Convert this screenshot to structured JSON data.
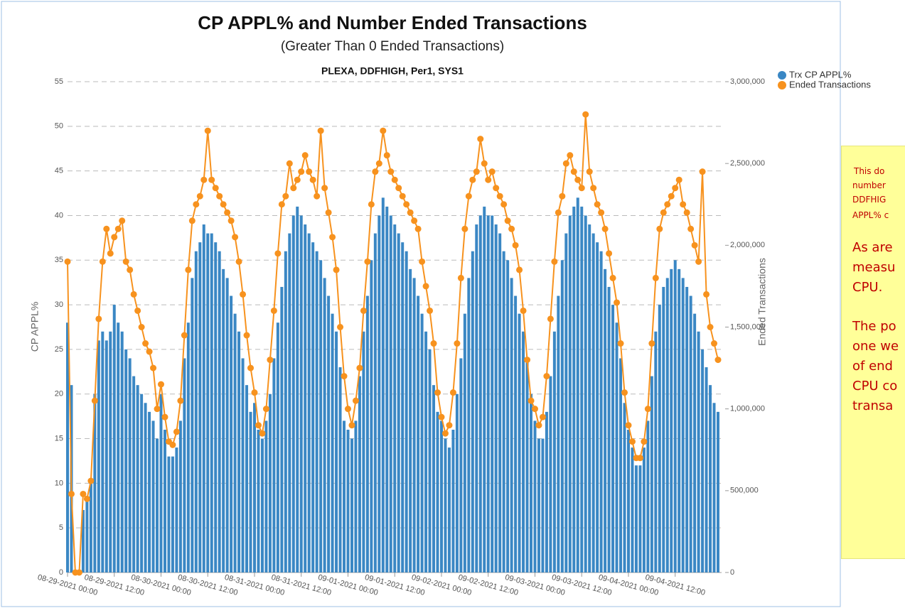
{
  "chart_data": {
    "type": "bar_line",
    "title": "CP APPL% and Number Ended Transactions",
    "subtitle": "(Greater Than 0 Ended Transactions)",
    "caption": "PLEXA, DDFHIGH, Per1, SYS1",
    "y_label": "CP APPL%",
    "y2_label": "Ended Transactions",
    "legend": "top-right",
    "grid": true,
    "categories": [
      "08-29-2021 00:00",
      null,
      null,
      null,
      null,
      null,
      null,
      null,
      null,
      null,
      null,
      null,
      "08-29-2021 12:00",
      null,
      null,
      null,
      null,
      null,
      null,
      null,
      null,
      null,
      null,
      null,
      "08-30-2021 00:00",
      null,
      null,
      null,
      null,
      null,
      null,
      null,
      null,
      null,
      null,
      null,
      "08-30-2021 12:00",
      null,
      null,
      null,
      null,
      null,
      null,
      null,
      null,
      null,
      null,
      null,
      "08-31-2021 00:00",
      null,
      null,
      null,
      null,
      null,
      null,
      null,
      null,
      null,
      null,
      null,
      "08-31-2021 12:00",
      null,
      null,
      null,
      null,
      null,
      null,
      null,
      null,
      null,
      null,
      null,
      "09-01-2021 00:00",
      null,
      null,
      null,
      null,
      null,
      null,
      null,
      null,
      null,
      null,
      null,
      "09-01-2021 12:00",
      null,
      null,
      null,
      null,
      null,
      null,
      null,
      null,
      null,
      null,
      null,
      "09-02-2021 00:00",
      null,
      null,
      null,
      null,
      null,
      null,
      null,
      null,
      null,
      null,
      null,
      "09-02-2021 12:00",
      null,
      null,
      null,
      null,
      null,
      null,
      null,
      null,
      null,
      null,
      null,
      "09-03-2021 00:00",
      null,
      null,
      null,
      null,
      null,
      null,
      null,
      null,
      null,
      null,
      null,
      "09-03-2021 12:00",
      null,
      null,
      null,
      null,
      null,
      null,
      null,
      null,
      null,
      null,
      null,
      "09-04-2021 00:00",
      null,
      null,
      null,
      null,
      null,
      null,
      null,
      null,
      null,
      null,
      null,
      "09-04-2021 12:00",
      null,
      null,
      null,
      null,
      null,
      null,
      null,
      null,
      null,
      null,
      null
    ],
    "series": [
      {
        "name": "Trx CP APPL%",
        "color": "#3a87c4",
        "type": "bar",
        "values": [
          28,
          21,
          0,
          0,
          7,
          8,
          10,
          20,
          26,
          27,
          26,
          27,
          30,
          28,
          27,
          25,
          24,
          22,
          21,
          20,
          19,
          18,
          17,
          15,
          20,
          16,
          13,
          13,
          14,
          17,
          24,
          28,
          33,
          36,
          37,
          39,
          38,
          38,
          37,
          36,
          34,
          33,
          31,
          29,
          27,
          24,
          21,
          18,
          19,
          16,
          15,
          17,
          20,
          24,
          28,
          32,
          36,
          38,
          40,
          41,
          40,
          39,
          38,
          37,
          36,
          35,
          33,
          31,
          29,
          27,
          23,
          17,
          16,
          15,
          17,
          22,
          27,
          31,
          35,
          38,
          40,
          42,
          41,
          40,
          39,
          38,
          37,
          36,
          34,
          33,
          31,
          29,
          27,
          25,
          21,
          18,
          17,
          15,
          14,
          16,
          20,
          24,
          29,
          33,
          36,
          39,
          40,
          41,
          40,
          40,
          39,
          38,
          36,
          35,
          33,
          31,
          29,
          27,
          24,
          20,
          17,
          15,
          15,
          18,
          22,
          27,
          31,
          35,
          38,
          40,
          41,
          42,
          41,
          40,
          39,
          38,
          37,
          36,
          34,
          32,
          30,
          28,
          24,
          19,
          16,
          14,
          12,
          12,
          14,
          17,
          22,
          27,
          30,
          32,
          33,
          34,
          35,
          34,
          33,
          32,
          31,
          29,
          27,
          25,
          23,
          21,
          19,
          18
        ]
      },
      {
        "name": "Ended Transactions",
        "color": "#f7921e",
        "type": "line",
        "axis": "y2",
        "values": [
          1900000,
          480000,
          0,
          0,
          480000,
          450000,
          560000,
          1050000,
          1550000,
          1900000,
          2100000,
          1950000,
          2050000,
          2100000,
          2150000,
          1900000,
          1850000,
          1700000,
          1600000,
          1500000,
          1400000,
          1350000,
          1250000,
          1000000,
          1150000,
          950000,
          800000,
          780000,
          860000,
          1050000,
          1450000,
          1850000,
          2150000,
          2250000,
          2300000,
          2400000,
          2700000,
          2400000,
          2350000,
          2300000,
          2250000,
          2200000,
          2150000,
          2050000,
          1900000,
          1700000,
          1450000,
          1250000,
          1100000,
          900000,
          850000,
          1000000,
          1300000,
          1600000,
          1950000,
          2250000,
          2300000,
          2500000,
          2350000,
          2400000,
          2450000,
          2550000,
          2450000,
          2400000,
          2300000,
          2700000,
          2350000,
          2200000,
          2050000,
          1850000,
          1500000,
          1200000,
          1000000,
          900000,
          1050000,
          1250000,
          1600000,
          1900000,
          2250000,
          2450000,
          2500000,
          2700000,
          2550000,
          2450000,
          2400000,
          2350000,
          2300000,
          2250000,
          2200000,
          2150000,
          2100000,
          1900000,
          1750000,
          1600000,
          1400000,
          1100000,
          950000,
          850000,
          900000,
          1100000,
          1400000,
          1800000,
          2100000,
          2300000,
          2400000,
          2450000,
          2650000,
          2500000,
          2400000,
          2450000,
          2350000,
          2300000,
          2250000,
          2150000,
          2100000,
          2000000,
          1850000,
          1600000,
          1300000,
          1050000,
          1000000,
          900000,
          950000,
          1200000,
          1550000,
          1900000,
          2200000,
          2300000,
          2500000,
          2550000,
          2450000,
          2400000,
          2350000,
          2800000,
          2450000,
          2350000,
          2250000,
          2200000,
          2100000,
          1950000,
          1800000,
          1650000,
          1400000,
          1100000,
          900000,
          800000,
          700000,
          700000,
          800000,
          1000000,
          1400000,
          1800000,
          2100000,
          2200000,
          2250000,
          2300000,
          2350000,
          2400000,
          2250000,
          2200000,
          2100000,
          2000000,
          1900000,
          2450000,
          1700000,
          1500000,
          1400000,
          1300000
        ]
      }
    ],
    "ylim": [
      0,
      55
    ],
    "yticks": [
      0,
      5,
      10,
      15,
      20,
      25,
      30,
      35,
      40,
      45,
      50,
      55
    ],
    "y2lim": [
      0,
      3000000
    ],
    "y2ticks": [
      0,
      {
        "value": 500000,
        "label": "500,000"
      },
      {
        "value": 1000000,
        "label": "1,000,000"
      },
      {
        "value": 1500000,
        "label": "1,500,000"
      },
      {
        "value": 2000000,
        "label": "2,000,000"
      },
      {
        "value": 2500000,
        "label": "2,500,000"
      },
      {
        "value": 3000000,
        "label": "3,000,000"
      }
    ]
  },
  "note": {
    "lines": [
      "This do",
      "number",
      "DDFHIG",
      "APPL% c",
      "As are",
      "measu",
      "CPU.",
      "The po",
      "one we",
      "of end",
      "CPU co",
      "transa"
    ]
  }
}
